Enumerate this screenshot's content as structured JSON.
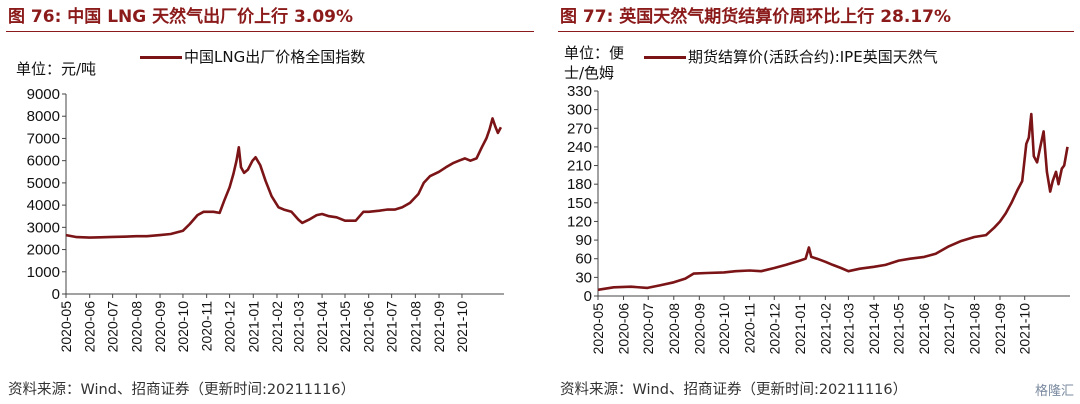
{
  "watermark": "格隆汇",
  "chart_data": [
    {
      "type": "line",
      "figure_title": "图 76:  中国 LNG 天然气出厂价上行 3.09%",
      "unit_label": "单位：元/吨",
      "series": [
        {
          "name": "中国LNG出厂价格全国指数",
          "color": "#7b1416",
          "points": [
            [
              "2020-05-01",
              2650
            ],
            [
              "2020-05-15",
              2560
            ],
            [
              "2020-06-01",
              2540
            ],
            [
              "2020-06-15",
              2550
            ],
            [
              "2020-07-01",
              2570
            ],
            [
              "2020-07-15",
              2580
            ],
            [
              "2020-08-01",
              2600
            ],
            [
              "2020-08-15",
              2600
            ],
            [
              "2020-09-01",
              2650
            ],
            [
              "2020-09-15",
              2700
            ],
            [
              "2020-10-01",
              2850
            ],
            [
              "2020-10-10",
              3150
            ],
            [
              "2020-10-20",
              3550
            ],
            [
              "2020-10-28",
              3700
            ],
            [
              "2020-11-10",
              3700
            ],
            [
              "2020-11-18",
              3650
            ],
            [
              "2020-11-24",
              4200
            ],
            [
              "2020-12-01",
              4800
            ],
            [
              "2020-12-06",
              5400
            ],
            [
              "2020-12-10",
              6000
            ],
            [
              "2020-12-13",
              6600
            ],
            [
              "2020-12-16",
              5700
            ],
            [
              "2020-12-20",
              5450
            ],
            [
              "2020-12-25",
              5600
            ],
            [
              "2020-12-31",
              6000
            ],
            [
              "2021-01-04",
              6150
            ],
            [
              "2021-01-10",
              5800
            ],
            [
              "2021-01-17",
              5100
            ],
            [
              "2021-01-25",
              4400
            ],
            [
              "2021-02-03",
              3900
            ],
            [
              "2021-02-10",
              3800
            ],
            [
              "2021-02-20",
              3700
            ],
            [
              "2021-03-01",
              3350
            ],
            [
              "2021-03-06",
              3200
            ],
            [
              "2021-03-15",
              3350
            ],
            [
              "2021-03-25",
              3550
            ],
            [
              "2021-04-01",
              3600
            ],
            [
              "2021-04-10",
              3500
            ],
            [
              "2021-04-20",
              3450
            ],
            [
              "2021-05-01",
              3300
            ],
            [
              "2021-05-15",
              3300
            ],
            [
              "2021-05-25",
              3700
            ],
            [
              "2021-06-01",
              3700
            ],
            [
              "2021-06-15",
              3750
            ],
            [
              "2021-06-25",
              3800
            ],
            [
              "2021-07-05",
              3800
            ],
            [
              "2021-07-15",
              3900
            ],
            [
              "2021-07-25",
              4100
            ],
            [
              "2021-08-05",
              4500
            ],
            [
              "2021-08-12",
              5000
            ],
            [
              "2021-08-20",
              5300
            ],
            [
              "2021-09-01",
              5500
            ],
            [
              "2021-09-10",
              5700
            ],
            [
              "2021-09-20",
              5900
            ],
            [
              "2021-09-27",
              6000
            ],
            [
              "2021-10-05",
              6100
            ],
            [
              "2021-10-12",
              6000
            ],
            [
              "2021-10-20",
              6100
            ],
            [
              "2021-10-27",
              6600
            ],
            [
              "2021-11-02",
              7000
            ],
            [
              "2021-11-06",
              7400
            ],
            [
              "2021-11-10",
              7900
            ],
            [
              "2021-11-14",
              7500
            ],
            [
              "2021-11-17",
              7250
            ],
            [
              "2021-11-21",
              7500
            ]
          ]
        }
      ],
      "y_ticks": [
        0,
        1000,
        2000,
        3000,
        4000,
        5000,
        6000,
        7000,
        8000,
        9000
      ],
      "x_ticks": [
        "2020-05",
        "2020-06",
        "2020-07",
        "2020-08",
        "2020-09",
        "2020-10",
        "2020-11",
        "2020-12",
        "2021-01",
        "2021-02",
        "2021-03",
        "2021-04",
        "2021-05",
        "2021-06",
        "2021-07",
        "2021-08",
        "2021-09",
        "2021-10"
      ],
      "ylim": [
        0,
        9000
      ],
      "x_range": [
        "2020-05-01",
        "2021-11-25"
      ],
      "grid": false,
      "legend_position": "top"
    },
    {
      "type": "line",
      "figure_title": "图 77:  英国天然气期货结算价周环比上行 28.17%",
      "unit_label_lines": [
        "单位：便",
        "士/色姆"
      ],
      "series": [
        {
          "name": "期货结算价(活跃合约):IPE英国天然气",
          "color": "#7b1416",
          "points": [
            [
              "2020-05-01",
              10
            ],
            [
              "2020-05-20",
              14
            ],
            [
              "2020-06-10",
              15
            ],
            [
              "2020-06-30",
              13
            ],
            [
              "2020-07-15",
              17
            ],
            [
              "2020-08-01",
              22
            ],
            [
              "2020-08-15",
              28
            ],
            [
              "2020-08-25",
              36
            ],
            [
              "2020-09-10",
              37
            ],
            [
              "2020-10-01",
              38
            ],
            [
              "2020-10-15",
              40
            ],
            [
              "2020-11-01",
              41
            ],
            [
              "2020-11-15",
              40
            ],
            [
              "2020-12-01",
              45
            ],
            [
              "2020-12-15",
              50
            ],
            [
              "2021-01-01",
              57
            ],
            [
              "2021-01-08",
              60
            ],
            [
              "2021-01-12",
              78
            ],
            [
              "2021-01-15",
              63
            ],
            [
              "2021-01-22",
              60
            ],
            [
              "2021-02-01",
              55
            ],
            [
              "2021-02-10",
              50
            ],
            [
              "2021-02-20",
              45
            ],
            [
              "2021-03-01",
              40
            ],
            [
              "2021-03-15",
              44
            ],
            [
              "2021-04-01",
              47
            ],
            [
              "2021-04-15",
              50
            ],
            [
              "2021-05-01",
              57
            ],
            [
              "2021-05-15",
              60
            ],
            [
              "2021-06-01",
              63
            ],
            [
              "2021-06-15",
              68
            ],
            [
              "2021-07-01",
              80
            ],
            [
              "2021-07-15",
              88
            ],
            [
              "2021-08-01",
              95
            ],
            [
              "2021-08-15",
              98
            ],
            [
              "2021-08-25",
              110
            ],
            [
              "2021-09-01",
              120
            ],
            [
              "2021-09-08",
              133
            ],
            [
              "2021-09-15",
              150
            ],
            [
              "2021-09-22",
              170
            ],
            [
              "2021-09-28",
              185
            ],
            [
              "2021-10-03",
              245
            ],
            [
              "2021-10-06",
              255
            ],
            [
              "2021-10-09",
              293
            ],
            [
              "2021-10-12",
              225
            ],
            [
              "2021-10-16",
              215
            ],
            [
              "2021-10-20",
              240
            ],
            [
              "2021-10-24",
              265
            ],
            [
              "2021-10-28",
              200
            ],
            [
              "2021-11-01",
              168
            ],
            [
              "2021-11-04",
              185
            ],
            [
              "2021-11-08",
              200
            ],
            [
              "2021-11-11",
              180
            ],
            [
              "2021-11-15",
              205
            ],
            [
              "2021-11-18",
              210
            ],
            [
              "2021-11-22",
              240
            ]
          ]
        }
      ],
      "y_ticks": [
        0,
        30,
        60,
        90,
        120,
        150,
        180,
        210,
        240,
        270,
        300,
        330
      ],
      "x_ticks": [
        "2020-05",
        "2020-06",
        "2020-07",
        "2020-08",
        "2020-09",
        "2020-10",
        "2020-11",
        "2020-12",
        "2021-01",
        "2021-02",
        "2021-03",
        "2021-04",
        "2021-05",
        "2021-06",
        "2021-07",
        "2021-08",
        "2021-09",
        "2021-10"
      ],
      "ylim": [
        0,
        330
      ],
      "x_range": [
        "2020-05-01",
        "2021-11-25"
      ],
      "grid": false,
      "legend_position": "top"
    }
  ],
  "footer": {
    "source_left": "资料来源：Wind、招商证券（更新时间:20211116）",
    "source_right": "资料来源：Wind、招商证券（更新时间:20211116）"
  }
}
